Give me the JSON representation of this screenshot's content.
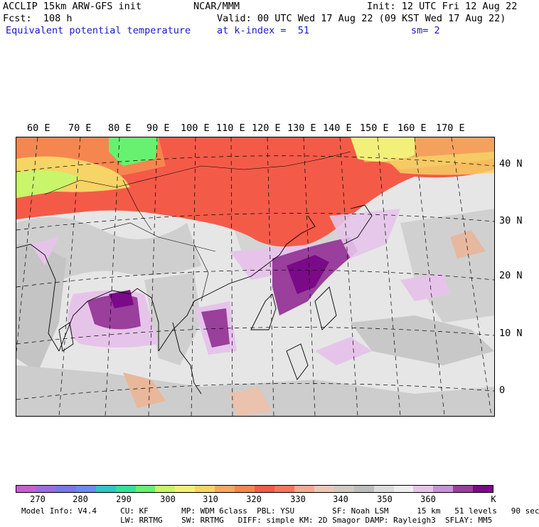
{
  "header": {
    "left1": "ACCLIP 15km ARW-GFS init",
    "left2": "Fcst:  108 h",
    "left3": "Equivalent potential temperature",
    "center1": "NCAR/MMM",
    "center2": "Valid: 00 UTC Wed 17 Aug 22 (09 KST Wed 17 Aug 22)",
    "center3": "at k-index =  51",
    "right1": "Init: 12 UTC Fri 12 Aug 22",
    "right3": "sm= 2"
  },
  "map": {
    "lon_labels": [
      "60 E",
      "70 E",
      "80 E",
      "90 E",
      "100 E",
      "110 E",
      "120 E",
      "130 E",
      "140 E",
      "150 E",
      "160 E",
      "170 E"
    ],
    "lat_labels": [
      "40 N",
      "30 N",
      "20 N",
      "10 N",
      "0"
    ]
  },
  "colorbar": {
    "colors": [
      "#c85fd0",
      "#9b6ce0",
      "#7878e6",
      "#6a8cf0",
      "#2fc6c8",
      "#33e29a",
      "#66f270",
      "#c8f56a",
      "#f2f07a",
      "#f6d466",
      "#f5a860",
      "#f5864f",
      "#f45a48",
      "#f5765f",
      "#f4a995",
      "#ecc8b5",
      "#d2c9c3",
      "#bdbdbd",
      "#dcdcdc",
      "#efefef",
      "#e6c4ea",
      "#c493d8",
      "#9a3f9c",
      "#7a0a88"
    ],
    "tick_labels": [
      "270",
      "280",
      "290",
      "300",
      "310",
      "320",
      "330",
      "340",
      "350",
      "360",
      "K"
    ]
  },
  "footer": {
    "line1": "Model Info: V4.4     CU: KF       MP: WDM 6class  PBL: YSU        SF: Noah LSM      15 km   51 levels   90 sec",
    "line2": "                     LW: RRTMG    SW: RRTMG   DIFF: simple KM: 2D Smagor DAMP: Rayleigh3  SFLAY: MM5"
  }
}
